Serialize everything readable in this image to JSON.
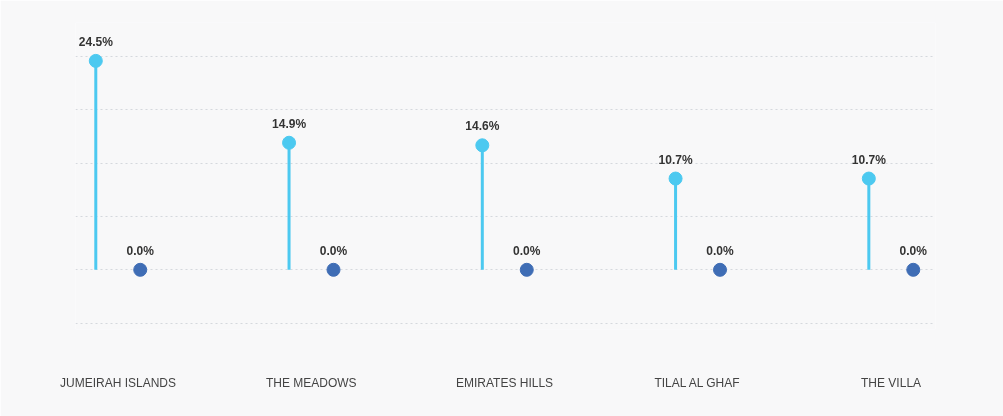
{
  "chart_data": {
    "type": "lollipop",
    "categories": [
      "JUMEIRAH ISLANDS",
      "THE MEADOWS",
      "EMIRATES HILLS",
      "TILAL AL GHAF",
      "THE VILLA"
    ],
    "series": [
      {
        "color": "#4cc9f0",
        "values": [
          24.5,
          14.9,
          14.6,
          10.7,
          10.7
        ],
        "value_labels": [
          "24.5%",
          "14.9%",
          "14.6%",
          "10.7%",
          "10.7%"
        ]
      },
      {
        "color": "#3f6db5",
        "values": [
          0.0,
          0.0,
          0.0,
          0.0,
          0.0
        ],
        "value_labels": [
          "0.0%",
          "0.0%",
          "0.0%",
          "0.0%",
          "0.0%"
        ]
      }
    ],
    "ylim": [
      -7,
      29
    ],
    "yticks": [
      {
        "value": -6.25,
        "label": null
      },
      {
        "value": 0,
        "label": null
      },
      {
        "value": 6.25,
        "label": null
      },
      {
        "value": 12.5,
        "label": null
      },
      {
        "value": 18.75,
        "label": null
      },
      {
        "value": 25,
        "label": null
      }
    ],
    "grid": "y",
    "tick_labels": "x",
    "marker": "circle"
  }
}
